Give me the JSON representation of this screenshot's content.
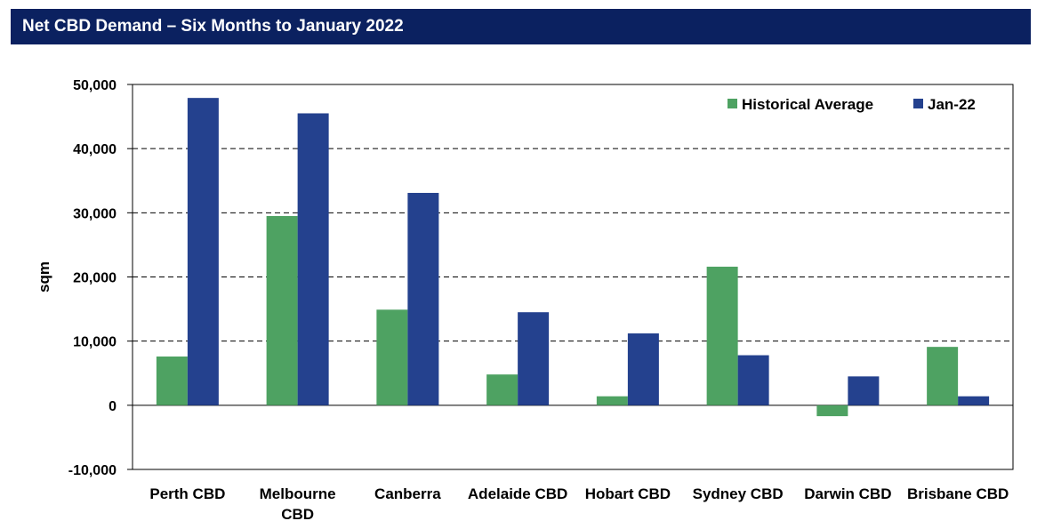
{
  "header": {
    "title": "Net CBD Demand – Six Months to January 2022"
  },
  "colors": {
    "title_bg": "#0b2160",
    "historical": "#4ea262",
    "jan22": "#24418e"
  },
  "chart_data": {
    "type": "bar",
    "title": "Net CBD Demand – Six Months to January 2022",
    "ylabel": "sqm",
    "xlabel": "",
    "ylim": [
      -10000,
      50000
    ],
    "yticks": [
      -10000,
      0,
      10000,
      20000,
      30000,
      40000,
      50000
    ],
    "ytick_labels": [
      "-10,000",
      "0",
      "10,000",
      "20,000",
      "30,000",
      "40,000",
      "50,000"
    ],
    "categories": [
      [
        "Perth CBD"
      ],
      [
        "Melbourne",
        "CBD"
      ],
      [
        "Canberra"
      ],
      [
        "Adelaide CBD"
      ],
      [
        "Hobart CBD"
      ],
      [
        "Sydney CBD"
      ],
      [
        "Darwin CBD"
      ],
      [
        "Brisbane CBD"
      ]
    ],
    "series": [
      {
        "name": "Historical Average",
        "values": [
          7600,
          29500,
          14900,
          4800,
          1400,
          21600,
          -1700,
          9100
        ]
      },
      {
        "name": "Jan-22",
        "values": [
          47900,
          45500,
          33100,
          14500,
          11200,
          7800,
          4500,
          1400
        ]
      }
    ],
    "grid": true,
    "gridlines": "dashed",
    "legend_placement": "top-right"
  }
}
